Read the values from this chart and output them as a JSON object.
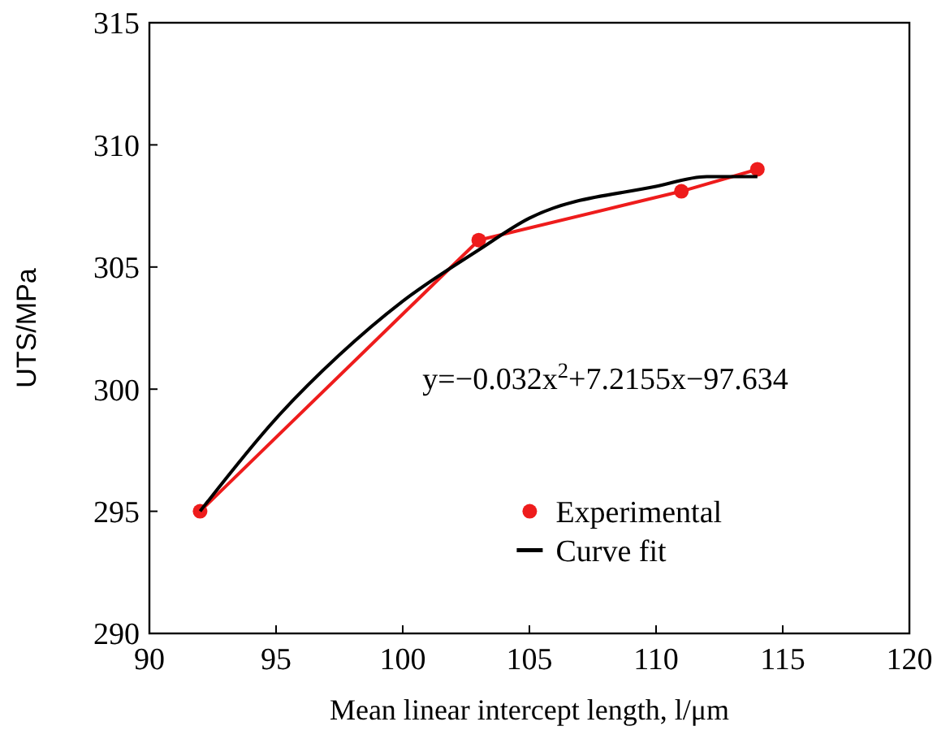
{
  "chart_data": {
    "type": "line",
    "xlabel": "Mean linear intercept length, l/μm",
    "ylabel": "UTS/MPa",
    "xlim": [
      90,
      120
    ],
    "xticks": [
      90,
      95,
      100,
      105,
      110,
      115,
      120
    ],
    "ylim": [
      290,
      315
    ],
    "yticks": [
      290,
      295,
      300,
      305,
      310,
      315
    ],
    "grid": false,
    "legend": "bottom",
    "annotations": [
      "y=−0.032x$^{2}$+7.2155x−97.634"
    ],
    "series": [
      {
        "name": "Experimental",
        "color": "#ee1c1c",
        "marker": "circle",
        "x": [
          92,
          103,
          111,
          114
        ],
        "values": [
          295,
          306.1,
          308.1,
          309
        ]
      },
      {
        "name": "Curve fit",
        "color": "#000000",
        "marker": "none",
        "x": [
          92,
          95,
          97.5,
          100,
          103,
          105,
          110,
          112,
          114
        ],
        "values": [
          295,
          298.8,
          301.4,
          303.6,
          305.7,
          307,
          308.3,
          308.7,
          308.7
        ]
      }
    ]
  }
}
